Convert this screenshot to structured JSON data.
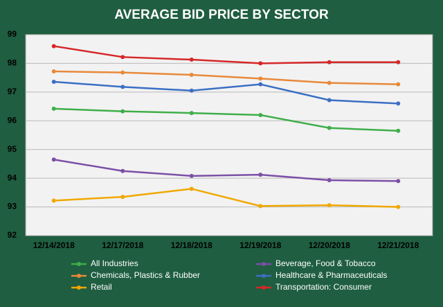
{
  "chart_data": {
    "type": "line",
    "title": "AVERAGE BID PRICE BY SECTOR",
    "categories": [
      "12/14/2018",
      "12/17/2018",
      "12/18/2018",
      "12/19/2018",
      "12/20/2018",
      "12/21/2018"
    ],
    "series": [
      {
        "name": "All Industries",
        "color": "#3fae4a",
        "values": [
          96.42,
          96.33,
          96.27,
          96.2,
          95.75,
          95.65
        ]
      },
      {
        "name": "Beverage, Food & Tobacco",
        "color": "#7b4fa6",
        "values": [
          94.65,
          94.25,
          94.08,
          94.12,
          93.93,
          93.9
        ]
      },
      {
        "name": "Chemicals, Plastics & Rubber",
        "color": "#e8893a",
        "values": [
          97.72,
          97.68,
          97.6,
          97.47,
          97.32,
          97.27
        ]
      },
      {
        "name": "Healthcare & Pharmaceuticals",
        "color": "#3b6fc4",
        "values": [
          97.36,
          97.18,
          97.05,
          97.27,
          96.72,
          96.6
        ]
      },
      {
        "name": "Retail",
        "color": "#f0a800",
        "values": [
          93.22,
          93.35,
          93.63,
          93.03,
          93.06,
          93.0
        ]
      },
      {
        "name": "Transportation: Consumer",
        "color": "#d62728",
        "values": [
          98.6,
          98.22,
          98.13,
          98.0,
          98.04,
          98.04
        ]
      }
    ],
    "ylim": [
      92,
      99
    ],
    "yticks": [
      92,
      93,
      94,
      95,
      96,
      97,
      98,
      99
    ],
    "grid": true
  }
}
